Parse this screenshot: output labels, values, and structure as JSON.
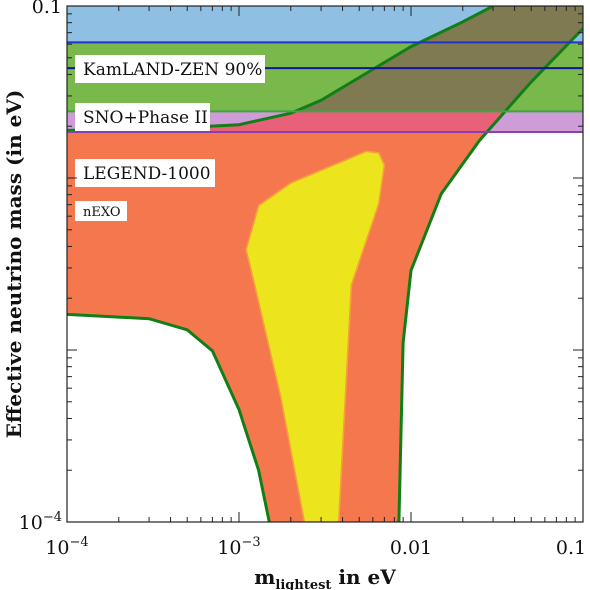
{
  "chart_data": {
    "type": "area",
    "xlabel": {
      "main": "m",
      "sub": "lightest",
      "tail": " in eV"
    },
    "ylabel": "Effective neutrino mass (in eV)",
    "xlim": [
      0.0001,
      0.1
    ],
    "ylim": [
      0.0001,
      0.1
    ],
    "xscale": "log",
    "yscale": "log",
    "x_ticks": [
      {
        "value": 0.0001,
        "base": "10",
        "exp": "−4"
      },
      {
        "value": 0.001,
        "base": "10",
        "exp": "−3"
      },
      {
        "value": 0.01,
        "text": "0.01"
      },
      {
        "value": 0.1,
        "text": "0.1"
      }
    ],
    "y_ticks": [
      {
        "value": 0.0001,
        "base": "10",
        "exp": "−4"
      },
      {
        "value": 0.1,
        "text": "0.1"
      }
    ],
    "colors": {
      "excluded_fill": "#8fc0e4",
      "band_fill": "#79b84a",
      "nexo_fill": "#c58bd0",
      "inverted_fill": "#f5774e",
      "normal_fill": "#ece41c",
      "overlap_fill": "#7f7a52",
      "region_outline": "#0f7f16",
      "normal_outline": "#f5a03a",
      "kamland_line": "#2233cc",
      "sno_line": "#10169a",
      "legend_line": "#3fa53f",
      "nexo_line": "#8b3fa8"
    },
    "experiments": [
      {
        "name": "KamLAND-ZEN 90%",
        "limit": 0.0614
      },
      {
        "name": "SNO+Phase II",
        "limit": 0.0435
      },
      {
        "name": "LEGEND-1000",
        "limit": 0.0244
      },
      {
        "name": "nEXO",
        "limit": 0.0185
      }
    ],
    "inverted_hierarchy": {
      "upper": [
        [
          0.0001,
          0.0189
        ],
        [
          0.0003,
          0.0192
        ],
        [
          0.001,
          0.0204
        ],
        [
          0.002,
          0.0238
        ],
        [
          0.003,
          0.0283
        ],
        [
          0.005,
          0.0384
        ],
        [
          0.01,
          0.0581
        ],
        [
          0.02,
          0.0809
        ],
        [
          0.03,
          0.1
        ]
      ],
      "lower": [
        [
          0.0001,
          0.00161
        ],
        [
          0.0003,
          0.00152
        ],
        [
          0.0005,
          0.00131
        ],
        [
          0.0007,
          0.00099
        ],
        [
          0.001,
          0.00045
        ],
        [
          0.0013,
          0.0002
        ],
        [
          0.0015,
          0.0001
        ]
      ],
      "right": [
        [
          0.0085,
          0.0001
        ],
        [
          0.009,
          0.0011
        ],
        [
          0.01,
          0.0029
        ],
        [
          0.015,
          0.0081
        ],
        [
          0.02,
          0.0121
        ],
        [
          0.025,
          0.0165
        ],
        [
          0.035,
          0.0242
        ],
        [
          0.05,
          0.0362
        ],
        [
          0.1,
          0.074
        ]
      ]
    },
    "normal_hierarchy": [
      [
        0.0024,
        0.0001
      ],
      [
        0.00175,
        0.00053
      ],
      [
        0.00125,
        0.00225
      ],
      [
        0.0011,
        0.00383
      ],
      [
        0.0013,
        0.00691
      ],
      [
        0.002,
        0.00935
      ],
      [
        0.004,
        0.0125
      ],
      [
        0.0055,
        0.0143
      ],
      [
        0.0065,
        0.014
      ],
      [
        0.007,
        0.0119
      ],
      [
        0.0065,
        0.0071
      ],
      [
        0.0045,
        0.00238
      ],
      [
        0.0038,
        0.0001
      ]
    ]
  },
  "legend_boxes": {
    "kamland": "KamLAND-ZEN 90%",
    "sno": "SNO+Phase II",
    "legend": "LEGEND-1000",
    "nexo": "nEXO"
  }
}
